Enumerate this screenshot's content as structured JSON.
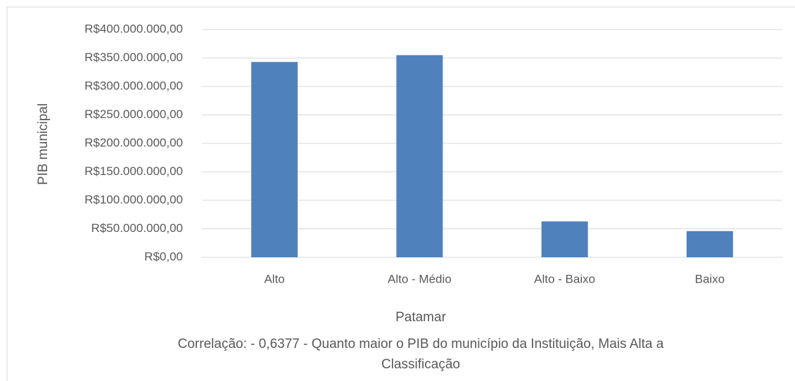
{
  "chart_data": {
    "type": "bar",
    "categories": [
      "Alto",
      "Alto - Médio",
      "Alto - Baixo",
      "Baixo"
    ],
    "values": [
      343000000,
      355000000,
      63000000,
      46000000
    ],
    "color": "#4f81bd",
    "y_label": "PIB municipal",
    "x_label": "Patamar",
    "annotation": [
      "Correlação: - 0,6377 - Quanto maior o PIB do município da Instituição,  Mais Alta a",
      "Classificação"
    ],
    "ylim": [
      0,
      400000000
    ],
    "yticks": [
      {
        "value": 0,
        "label": "R$0,00"
      },
      {
        "value": 50000000,
        "label": "R$50.000.000,00"
      },
      {
        "value": 100000000,
        "label": "R$100.000.000,00"
      },
      {
        "value": 150000000,
        "label": "R$150.000.000,00"
      },
      {
        "value": 200000000,
        "label": "R$200.000.000,00"
      },
      {
        "value": 250000000,
        "label": "R$250.000.000,00"
      },
      {
        "value": 300000000,
        "label": "R$300.000.000,00"
      },
      {
        "value": 350000000,
        "label": "R$350.000.000,00"
      },
      {
        "value": 400000000,
        "label": "R$400.000.000,00"
      }
    ],
    "grid": true
  }
}
